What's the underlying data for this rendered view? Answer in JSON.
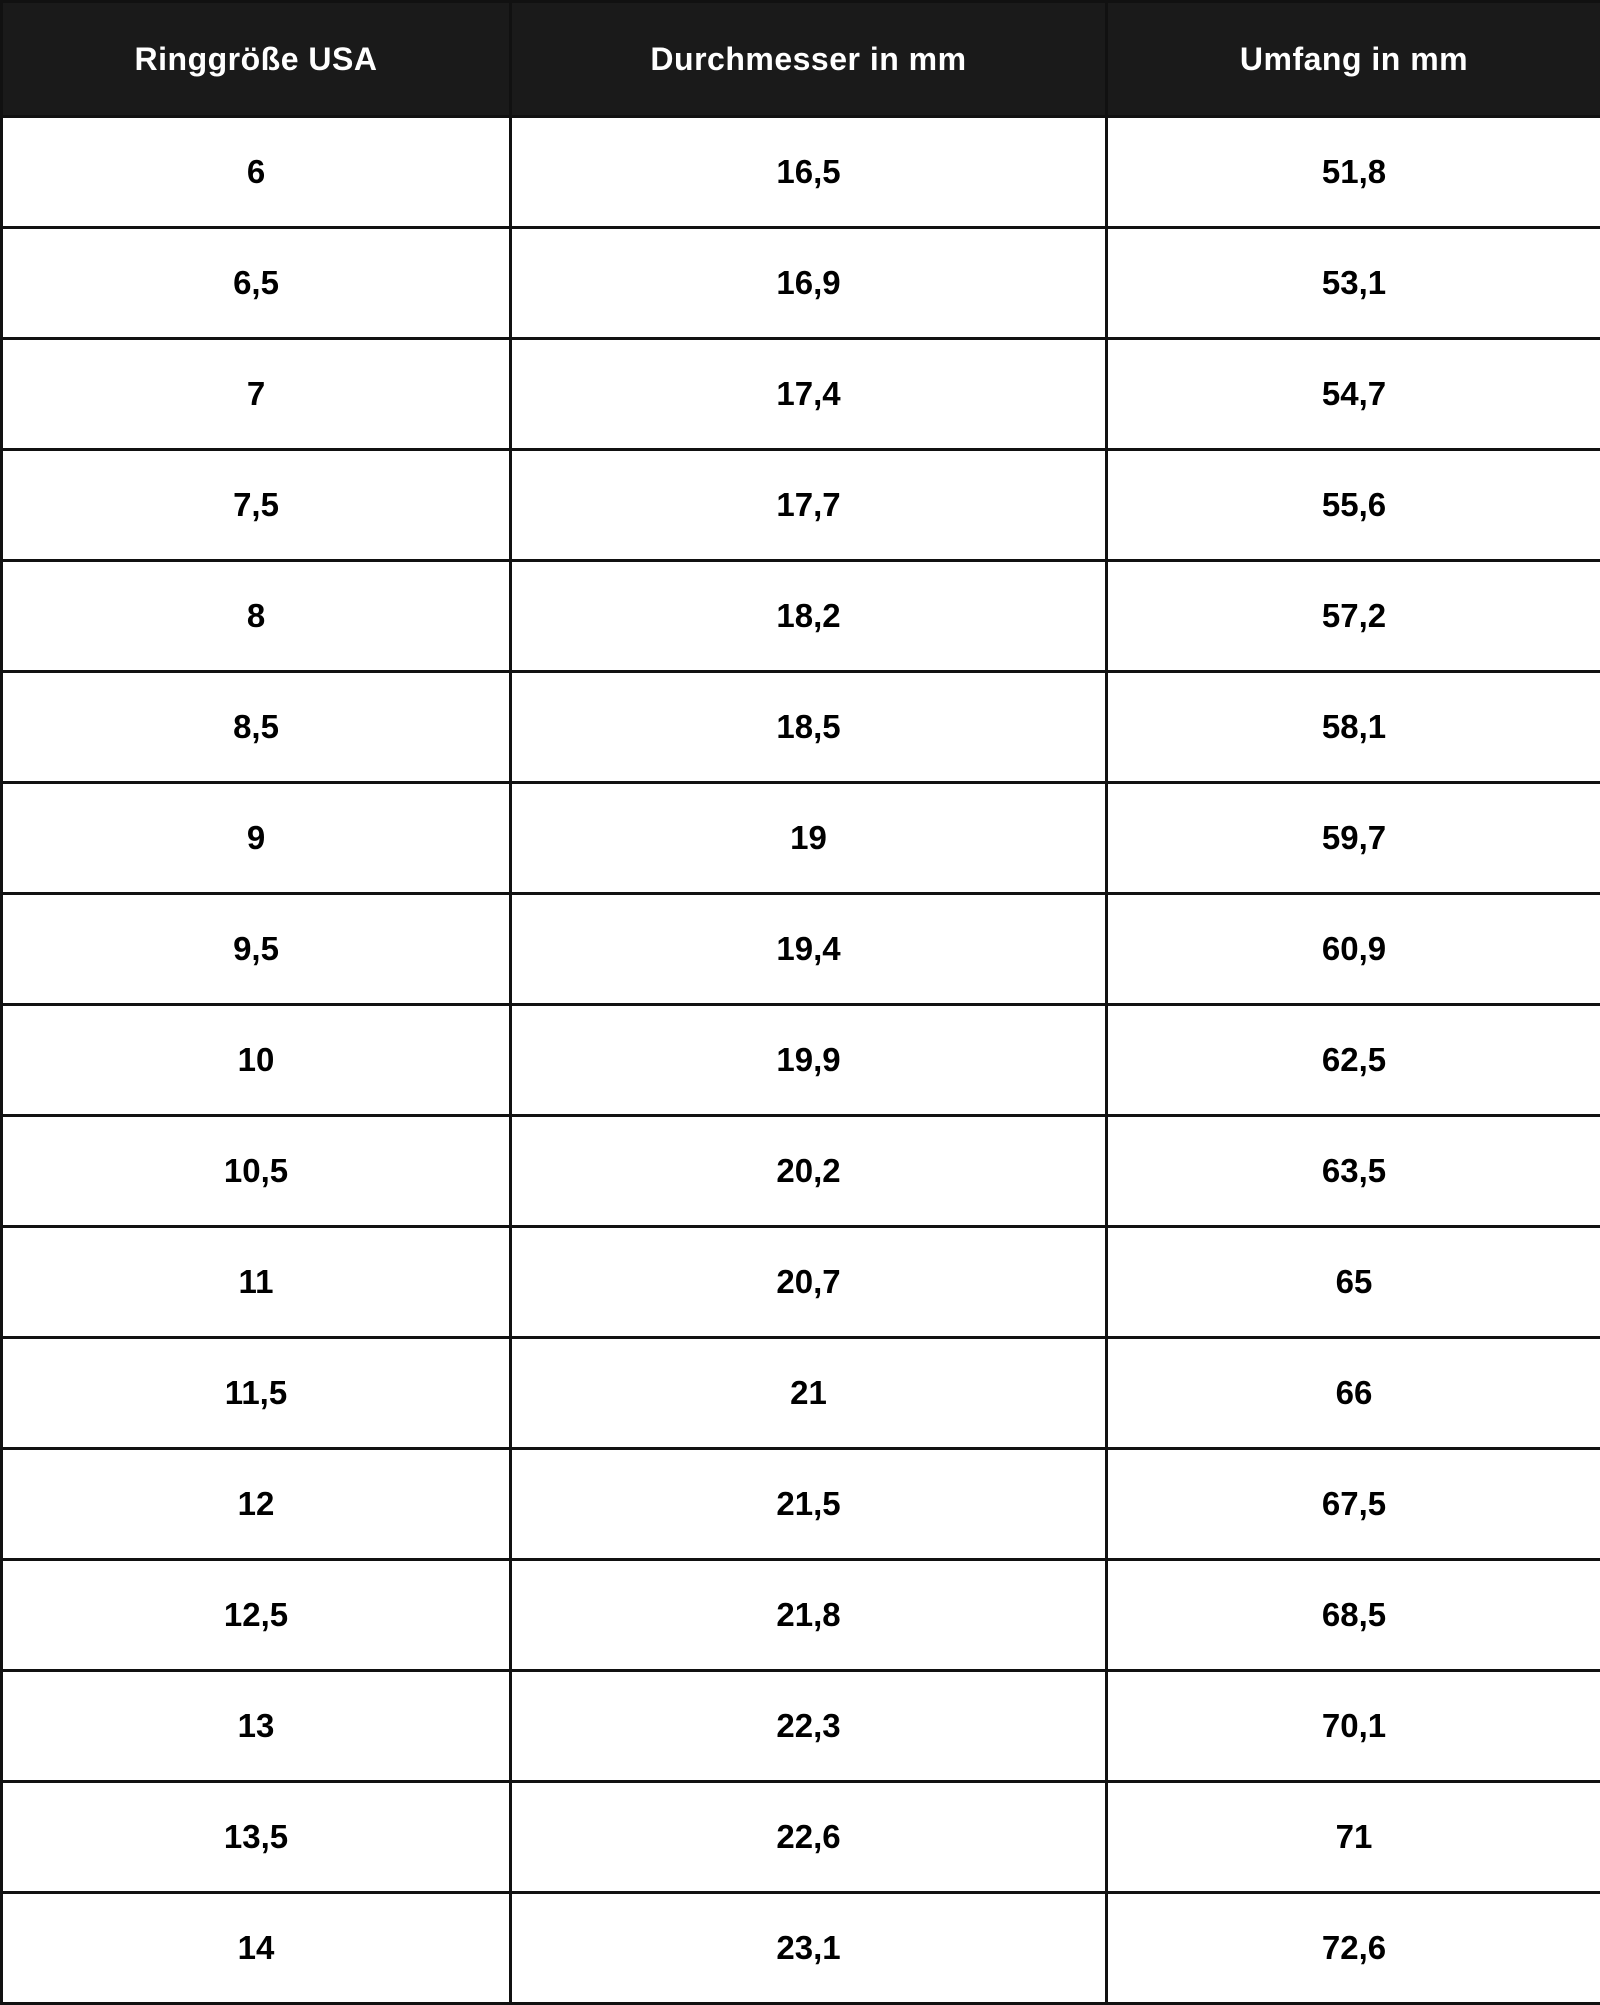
{
  "table": {
    "headers": [
      "Ringgröße USA",
      "Durchmesser in mm",
      "Umfang in mm"
    ],
    "rows": [
      [
        "6",
        "16,5",
        "51,8"
      ],
      [
        "6,5",
        "16,9",
        "53,1"
      ],
      [
        "7",
        "17,4",
        "54,7"
      ],
      [
        "7,5",
        "17,7",
        "55,6"
      ],
      [
        "8",
        "18,2",
        "57,2"
      ],
      [
        "8,5",
        "18,5",
        "58,1"
      ],
      [
        "9",
        "19",
        "59,7"
      ],
      [
        "9,5",
        "19,4",
        "60,9"
      ],
      [
        "10",
        "19,9",
        "62,5"
      ],
      [
        "10,5",
        "20,2",
        "63,5"
      ],
      [
        "11",
        "20,7",
        "65"
      ],
      [
        "11,5",
        "21",
        "66"
      ],
      [
        "12",
        "21,5",
        "67,5"
      ],
      [
        "12,5",
        "21,8",
        "68,5"
      ],
      [
        "13",
        "22,3",
        "70,1"
      ],
      [
        "13,5",
        "22,6",
        "71"
      ],
      [
        "14",
        "23,1",
        "72,6"
      ]
    ]
  },
  "colors": {
    "header_bg": "#1a1a1a",
    "header_text": "#ffffff",
    "border": "#111111"
  }
}
